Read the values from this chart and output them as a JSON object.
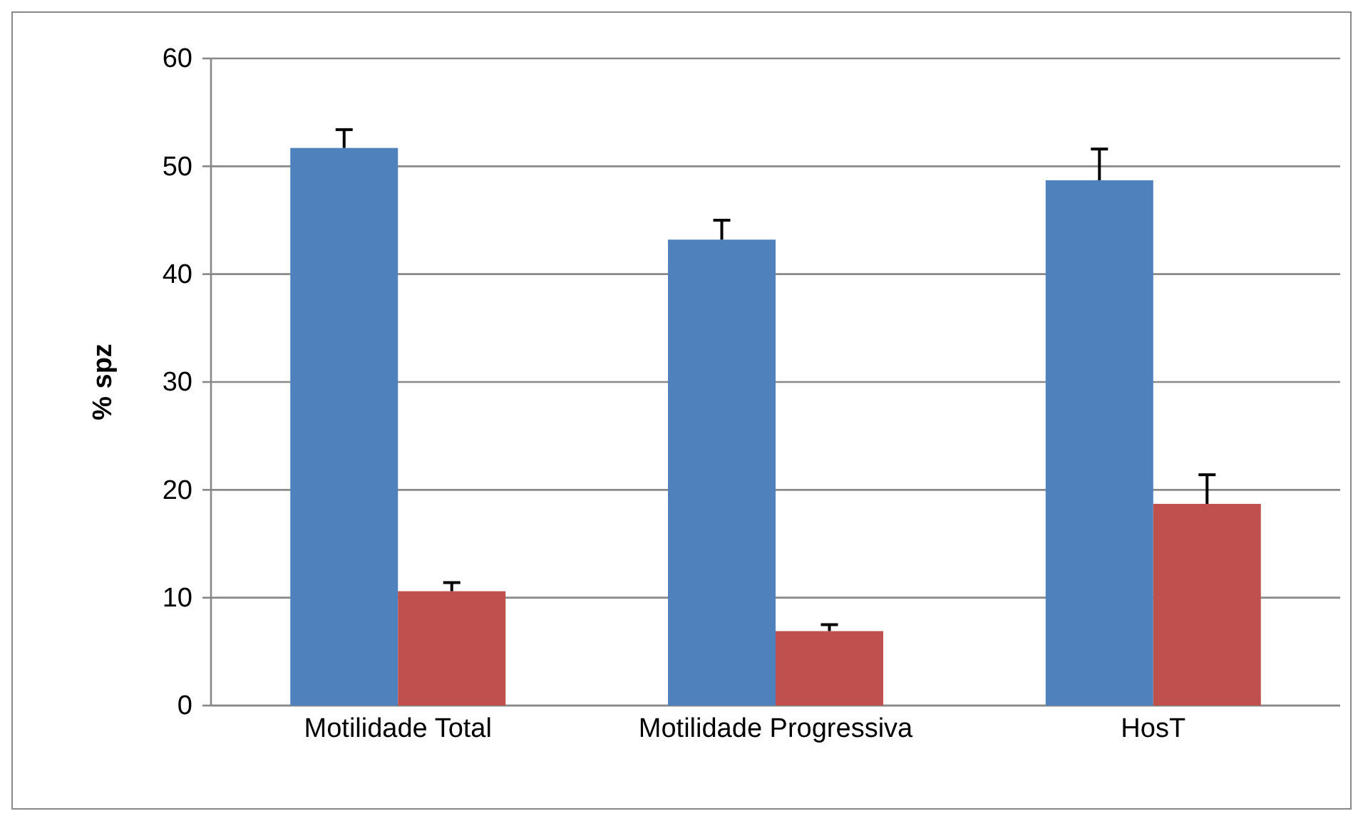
{
  "chart_data": {
    "type": "bar",
    "ylabel": "% spz",
    "categories": [
      "Motilidade Total",
      "Motilidade Progressiva",
      "HosT"
    ],
    "series": [
      {
        "color": "#4f81bd",
        "values": [
          51.7,
          43.2,
          48.7
        ],
        "errors": [
          [
            51.7,
            53.4
          ],
          [
            43.2,
            45.0
          ],
          [
            48.7,
            51.6
          ]
        ]
      },
      {
        "color": "#c0504d",
        "values": [
          10.6,
          6.9,
          18.7
        ],
        "errors": [
          [
            10.6,
            11.4
          ],
          [
            6.9,
            7.5
          ],
          [
            18.7,
            21.4
          ]
        ]
      }
    ],
    "ylim": [
      0,
      60
    ],
    "yticks": [
      0,
      10,
      20,
      30,
      40,
      50,
      60
    ],
    "grid": "y"
  }
}
